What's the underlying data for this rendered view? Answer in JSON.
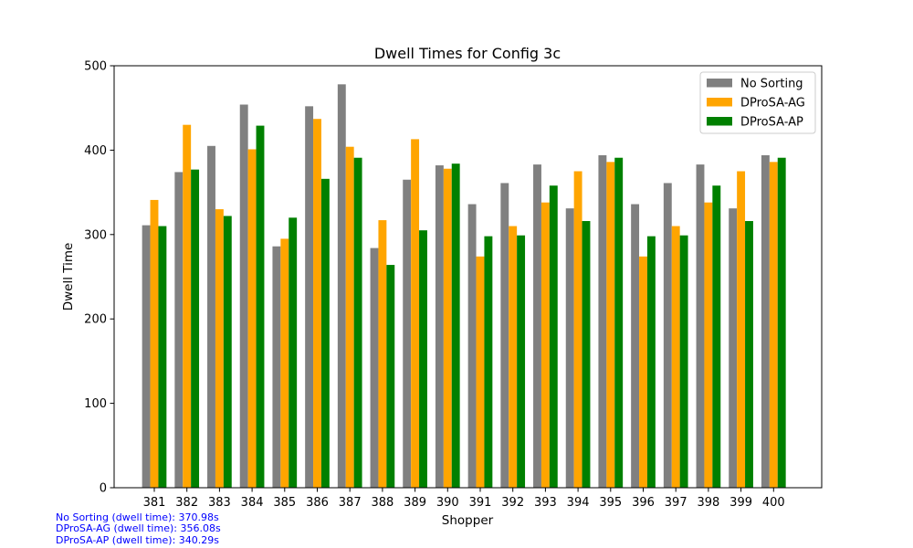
{
  "chart_data": {
    "type": "bar",
    "title": "Dwell Times for Config 3c",
    "xlabel": "Shopper",
    "ylabel": "Dwell Time",
    "ylim": [
      0,
      500
    ],
    "yticks": [
      0,
      100,
      200,
      300,
      400,
      500
    ],
    "grid": false,
    "legend_position": "top-right",
    "categories": [
      "381",
      "382",
      "383",
      "384",
      "385",
      "386",
      "387",
      "388",
      "389",
      "390",
      "391",
      "392",
      "393",
      "394",
      "395",
      "396",
      "397",
      "398",
      "399",
      "400"
    ],
    "series": [
      {
        "name": "No Sorting",
        "color": "#808080",
        "values": [
          311,
          374,
          405,
          454,
          286,
          452,
          478,
          284,
          365,
          382,
          336,
          361,
          383,
          331,
          394,
          336,
          361,
          383,
          331,
          394
        ]
      },
      {
        "name": "DProSA-AG",
        "color": "#FFA500",
        "values": [
          341,
          430,
          330,
          401,
          295,
          437,
          404,
          317,
          413,
          378,
          274,
          310,
          338,
          375,
          386,
          274,
          310,
          338,
          375,
          386
        ]
      },
      {
        "name": "DProSA-AP",
        "color": "#008000",
        "values": [
          310,
          377,
          322,
          429,
          320,
          366,
          391,
          264,
          305,
          384,
          298,
          299,
          358,
          316,
          391,
          298,
          299,
          358,
          316,
          391
        ]
      }
    ]
  },
  "footnotes": {
    "color": "#0000FF",
    "lines": [
      "No Sorting (dwell time): 370.98s",
      "DProSA-AG (dwell time): 356.08s",
      "DProSA-AP (dwell time): 340.29s"
    ]
  }
}
